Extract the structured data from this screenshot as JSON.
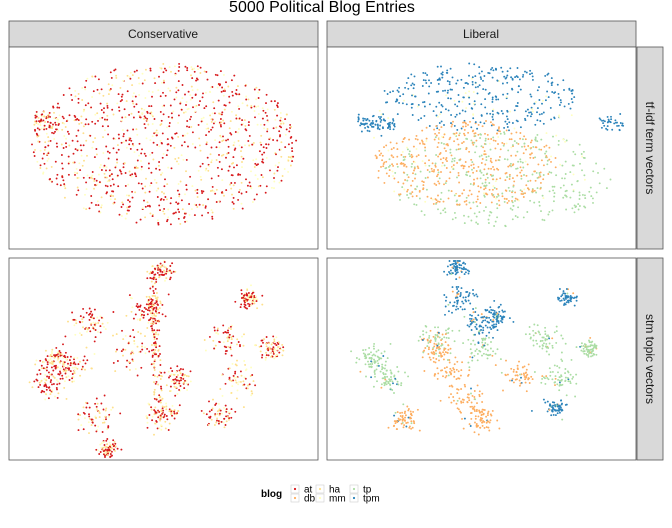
{
  "chart_data": {
    "type": "scatter",
    "title": "5000 Political Blog Entries",
    "facet_columns": [
      "Conservative",
      "Liberal"
    ],
    "facet_rows": [
      "tf-idf term vectors",
      "stm topic vectors"
    ],
    "legend": {
      "title": "blog",
      "placement": "bottom",
      "entries": [
        {
          "label": "at",
          "color": "#D7191C",
          "group": "Conservative"
        },
        {
          "label": "db",
          "color": "#FDAE61",
          "group": "Liberal"
        },
        {
          "label": "ha",
          "color": "#FEE08B",
          "group": "Conservative"
        },
        {
          "label": "mm",
          "color": "#FFFFBF",
          "group": "Conservative"
        },
        {
          "label": "tp",
          "color": "#ABDDA4",
          "group": "Liberal"
        },
        {
          "label": "tpm",
          "color": "#2B83BA",
          "group": "Liberal"
        }
      ]
    },
    "grid": false,
    "axes": "none",
    "point_count_per_panel": 2500
  }
}
